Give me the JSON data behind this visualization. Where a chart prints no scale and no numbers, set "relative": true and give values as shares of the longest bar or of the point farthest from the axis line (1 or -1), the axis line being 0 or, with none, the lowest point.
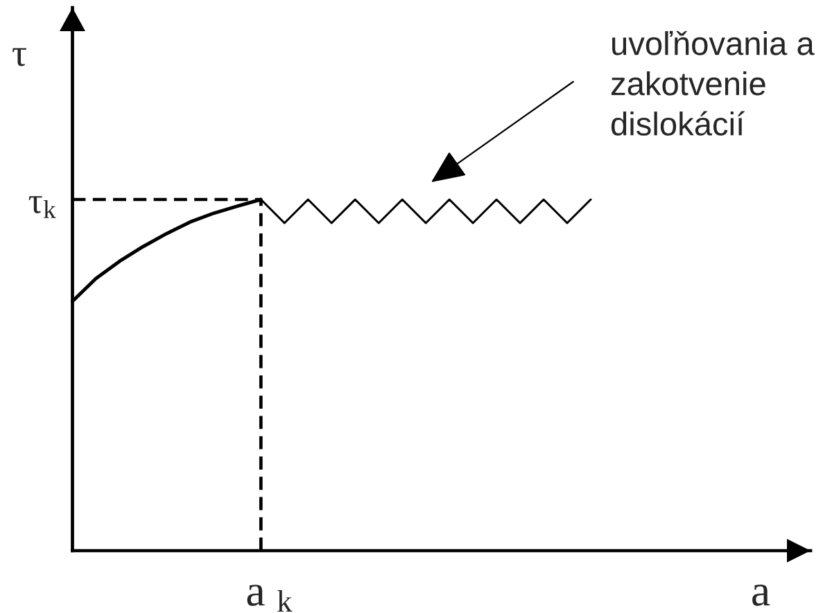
{
  "chart_data": {
    "type": "line",
    "relative": true,
    "xlabel": "a",
    "ylabel": "τ",
    "line_style": "solid",
    "categories": [
      null,
      null,
      null,
      null,
      null,
      null,
      null,
      null,
      null,
      null,
      null,
      null,
      null,
      null,
      null,
      null,
      null,
      null,
      null,
      null,
      null,
      null,
      null
    ],
    "series": [
      {
        "color": "#000000",
        "values": [
          0.71,
          0.775,
          0.824,
          0.866,
          0.903,
          0.936,
          0.961,
          0.981,
          1,
          null,
          null,
          null,
          null,
          null,
          null,
          null,
          null,
          null,
          null,
          null,
          null,
          null,
          null
        ]
      },
      {
        "color": "#000000",
        "values": [
          null,
          null,
          null,
          null,
          null,
          null,
          null,
          null,
          1,
          0.933,
          1,
          0.933,
          1,
          0.933,
          1,
          0.933,
          1,
          0.933,
          1,
          0.933,
          1,
          0.933,
          1
        ]
      }
    ],
    "ref_lines": [
      {
        "axis": "y",
        "value": 1,
        "label": "τ$_{k}$",
        "color": "#000000",
        "line_style": "dashed"
      }
    ],
    "annotations": [
      "uvoľňovania a\nzakotvenie\ndislokácií",
      "a $_{k}$"
    ]
  }
}
